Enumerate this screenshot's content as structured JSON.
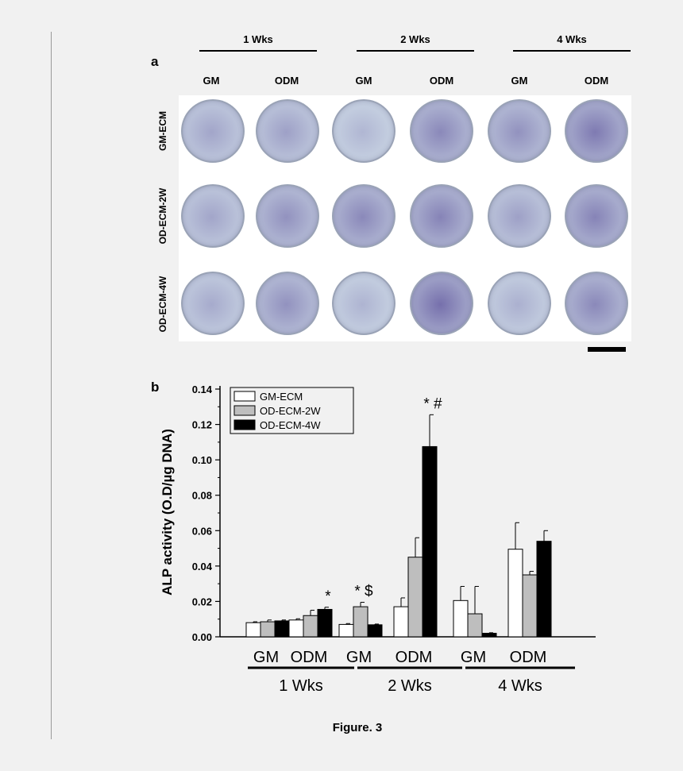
{
  "panel_a": {
    "letter": "a",
    "week_headers": [
      "1 Wks",
      "2 Wks",
      "4 Wks"
    ],
    "column_headers": [
      "GM",
      "ODM",
      "GM",
      "ODM",
      "GM",
      "ODM"
    ],
    "row_headers": [
      "GM-ECM",
      "OD-ECM-2W",
      "OD-ECM-4W"
    ],
    "well_stain_levels": [
      [
        0.25,
        0.3,
        0.08,
        0.55,
        0.45,
        0.7
      ],
      [
        0.25,
        0.45,
        0.55,
        0.6,
        0.3,
        0.6
      ],
      [
        0.2,
        0.45,
        0.1,
        0.8,
        0.15,
        0.55
      ]
    ],
    "colors": {
      "stain": "#5b4f9a",
      "base": "#c7d2e2"
    }
  },
  "panel_b": {
    "letter": "b"
  },
  "chart_data": {
    "type": "bar",
    "ylabel": "ALP activity (O.D/µg DNA)",
    "ylim": [
      0,
      0.14
    ],
    "yticks": [
      "0.00",
      "0.02",
      "0.04",
      "0.06",
      "0.08",
      "0.10",
      "0.12",
      "0.14"
    ],
    "categories": [
      "GM",
      "ODM",
      "GM",
      "ODM",
      "GM",
      "ODM"
    ],
    "groups": [
      "1 Wks",
      "2 Wks",
      "4 Wks"
    ],
    "legend_placement": "top-left",
    "series": [
      {
        "name": "GM-ECM",
        "color": "#ffffff",
        "values": [
          0.008,
          0.0095,
          0.007,
          0.017,
          0.0205,
          0.0495
        ],
        "errors": [
          0.0005,
          0.0007,
          0.0005,
          0.005,
          0.008,
          0.015
        ]
      },
      {
        "name": "OD-ECM-2W",
        "color": "#bebebe",
        "values": [
          0.0085,
          0.012,
          0.017,
          0.045,
          0.013,
          0.035
        ],
        "errors": [
          0.001,
          0.003,
          0.0025,
          0.011,
          0.0155,
          0.002
        ]
      },
      {
        "name": "OD-ECM-4W",
        "color": "#000000",
        "values": [
          0.009,
          0.0155,
          0.0068,
          0.1075,
          0.002,
          0.054
        ],
        "errors": [
          0.0005,
          0.0012,
          0.0004,
          0.018,
          0.0003,
          0.006
        ]
      }
    ],
    "annotations": [
      {
        "text": "*",
        "category_index": 1,
        "series_index": 2
      },
      {
        "text": "* $",
        "category_index": 2,
        "series_index": 1
      },
      {
        "text": "* #",
        "category_index": 3,
        "series_index": 2
      }
    ]
  },
  "caption": "Figure. 3"
}
